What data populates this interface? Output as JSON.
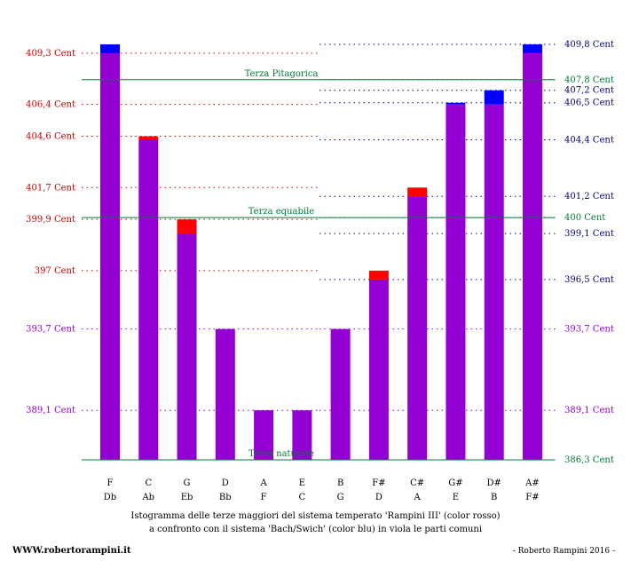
{
  "chart_data": {
    "type": "bar",
    "ylim": [
      386.3,
      410.2
    ],
    "categories_top": [
      "F",
      "C",
      "G",
      "D",
      "A",
      "E",
      "B",
      "F#",
      "C#",
      "G#",
      "D#",
      "A#"
    ],
    "categories_bottom": [
      "Db",
      "Ab",
      "Eb",
      "Bb",
      "F",
      "C",
      "G",
      "D",
      "A",
      "E",
      "B",
      "F#"
    ],
    "series": [
      {
        "name": "Rampini III",
        "color": "#ff0000",
        "values": [
          409.3,
          404.6,
          399.9,
          393.7,
          389.1,
          389.1,
          393.7,
          397.0,
          401.7,
          406.4,
          406.4,
          409.3
        ]
      },
      {
        "name": "Bach/Swich",
        "color": "#0000ff",
        "values": [
          409.8,
          404.4,
          399.1,
          393.7,
          389.1,
          389.1,
          393.7,
          396.5,
          401.2,
          406.5,
          407.2,
          409.8
        ]
      }
    ],
    "common_color": "#9400d3",
    "left_labels": [
      {
        "value": 409.3,
        "text": "409,3 Cent",
        "color": "#cc0000"
      },
      {
        "value": 406.4,
        "text": "406,4 Cent",
        "color": "#cc0000"
      },
      {
        "value": 404.6,
        "text": "404,6 Cent",
        "color": "#cc0000"
      },
      {
        "value": 401.7,
        "text": "401,7 Cent",
        "color": "#cc0000"
      },
      {
        "value": 399.9,
        "text": "399,9 Cent",
        "color": "#cc0000"
      },
      {
        "value": 397.0,
        "text": "397 Cent",
        "color": "#cc0000"
      },
      {
        "value": 393.7,
        "text": "393,7 Cent",
        "color": "#9400d3"
      },
      {
        "value": 389.1,
        "text": "389,1 Cent",
        "color": "#9400d3"
      }
    ],
    "right_labels": [
      {
        "value": 409.8,
        "text": "409,8 Cent",
        "color": "#000080"
      },
      {
        "value": 407.8,
        "text": "407,8 Cent",
        "color": "#007a33"
      },
      {
        "value": 407.2,
        "text": "407,2 Cent",
        "color": "#000080"
      },
      {
        "value": 406.5,
        "text": "406,5 Cent",
        "color": "#000080"
      },
      {
        "value": 404.4,
        "text": "404,4 Cent",
        "color": "#000080"
      },
      {
        "value": 401.2,
        "text": "401,2 Cent",
        "color": "#000080"
      },
      {
        "value": 400.0,
        "text": "400 Cent",
        "color": "#007a33"
      },
      {
        "value": 399.1,
        "text": "399,1 Cent",
        "color": "#000080"
      },
      {
        "value": 396.5,
        "text": "396,5 Cent",
        "color": "#000080"
      },
      {
        "value": 393.7,
        "text": "393,7 Cent",
        "color": "#9400d3"
      },
      {
        "value": 389.1,
        "text": "389,1 Cent",
        "color": "#9400d3"
      },
      {
        "value": 386.3,
        "text": "386,3 Cent",
        "color": "#007a33"
      }
    ],
    "reference_lines": [
      {
        "value": 407.8,
        "text": "Terza Pitagorica",
        "color": "#007a33"
      },
      {
        "value": 400.0,
        "text": "Terza equabile",
        "color": "#007a33"
      },
      {
        "value": 386.3,
        "text": "Terza naturale",
        "color": "#007a33"
      }
    ]
  },
  "caption": {
    "line1": "Istogramma delle terze maggiori del sistema temperato 'Rampini III' (color rosso)",
    "line2": "a confronto con il sistema 'Bach/Swich' (color blu) in viola le parti comuni"
  },
  "credits": {
    "website": "WWW.robertorampini.it",
    "author": "- Roberto Rampini 2016 -"
  }
}
